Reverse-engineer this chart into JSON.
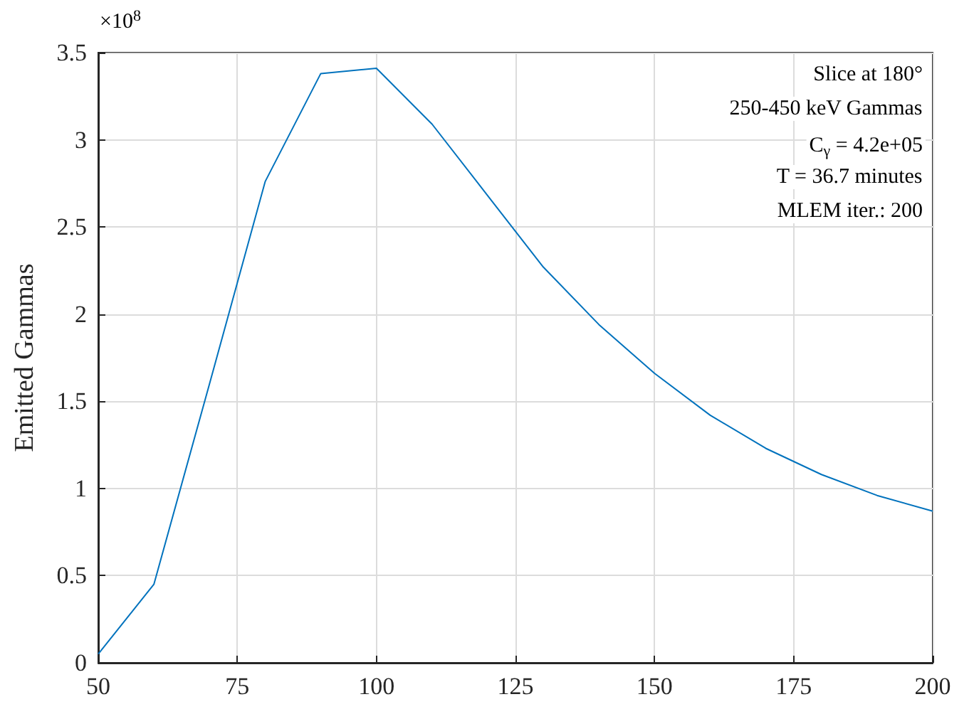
{
  "chart_data": {
    "type": "line",
    "ylabel": "Emitted Gammas",
    "annotations": [
      "×10$^{8}$",
      "Slice at 180°",
      "250-450 keV Gammas",
      "C$_{γ}$ = 4.2e+05",
      "T = 36.7 minutes",
      "MLEM iter.: 200"
    ],
    "x": [
      50,
      60,
      70,
      80,
      90,
      100,
      110,
      120,
      130,
      140,
      150,
      160,
      170,
      180,
      190,
      200
    ],
    "series": [
      {
        "color": "#0072bd",
        "values": [
          0.05,
          0.45,
          1.6,
          2.76,
          3.38,
          3.41,
          3.09,
          2.68,
          2.27,
          1.94,
          1.66,
          1.42,
          1.23,
          1.08,
          0.96,
          0.87
        ]
      }
    ],
    "xlim": [
      50,
      200
    ],
    "xticks": [
      50,
      75,
      100,
      125,
      150,
      175,
      200
    ],
    "ylim": [
      0,
      3.5
    ],
    "yticks": [
      0,
      0.5,
      1,
      1.5,
      2,
      2.5,
      3,
      3.5
    ],
    "grid": true,
    "marker": "none",
    "line_style": "solid"
  }
}
